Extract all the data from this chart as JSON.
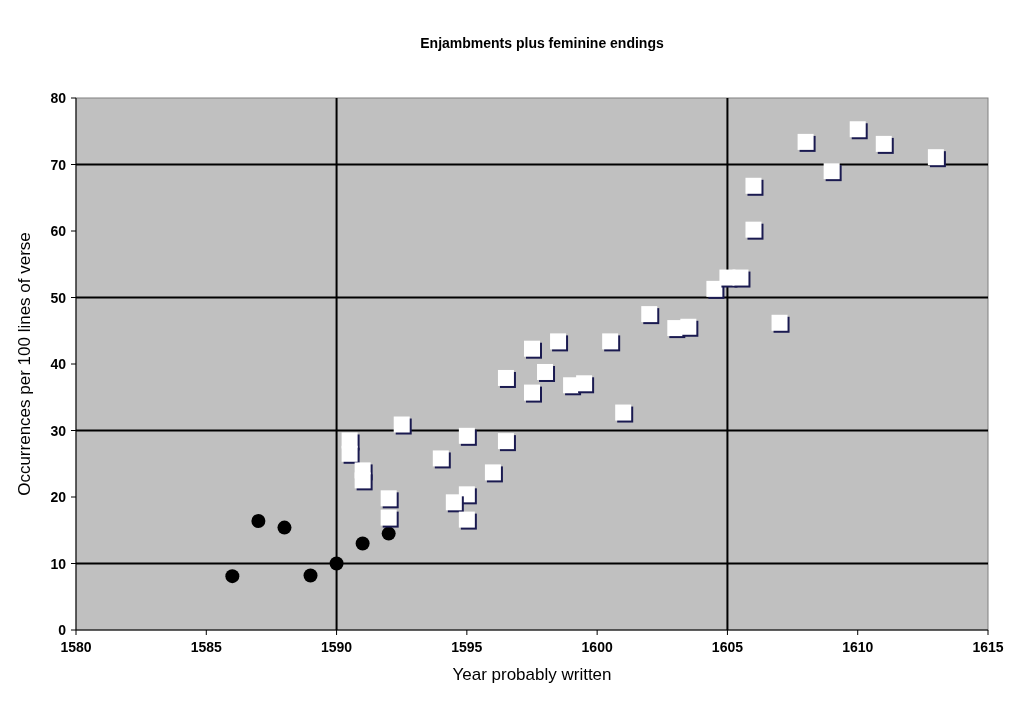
{
  "chart_data": {
    "type": "scatter",
    "title": "Enjambments plus feminine endings",
    "xlabel": "Year probably written",
    "ylabel": "Occurrences per 100 lines of verse",
    "xlim": [
      1580,
      1615
    ],
    "xticks": [
      1580,
      1585,
      1590,
      1595,
      1600,
      1605,
      1610,
      1615
    ],
    "ylim": [
      0,
      80
    ],
    "yticks": [
      0,
      10,
      20,
      30,
      40,
      50,
      60,
      70,
      80
    ],
    "grid": false,
    "ref_lines": [
      {
        "axis": "x",
        "value": 1590,
        "color": "#000000"
      },
      {
        "axis": "x",
        "value": 1605,
        "color": "#000000"
      },
      {
        "axis": "y",
        "value": 10,
        "color": "#000000"
      },
      {
        "axis": "y",
        "value": 30,
        "color": "#000000"
      },
      {
        "axis": "y",
        "value": 50,
        "color": "#000000"
      },
      {
        "axis": "y",
        "value": 70,
        "color": "#000000"
      }
    ],
    "series": [
      {
        "color": "#000000",
        "marker": "circle",
        "x": [
          1586,
          1587,
          1588,
          1589,
          1590,
          1591,
          1592
        ],
        "values": [
          8.1,
          16.4,
          15.4,
          8.2,
          10,
          13,
          14.5
        ]
      },
      {
        "color": "#ffffff",
        "marker": "square",
        "x": [
          1590.5,
          1590.5,
          1591,
          1591,
          1592.5,
          1592,
          1592,
          1594,
          1595,
          1596,
          1595,
          1594.5,
          1595,
          1596.5,
          1597.5,
          1598.5,
          1600.5,
          1596.5,
          1598,
          1597.5,
          1599,
          1599.5,
          1601,
          1602,
          1603,
          1603.5,
          1604.5,
          1605,
          1605.5,
          1607,
          1606,
          1606,
          1608,
          1609,
          1610,
          1611,
          1613
        ],
        "values": [
          28.5,
          26.5,
          24,
          22.5,
          30.9,
          19.8,
          16.9,
          25.8,
          29.2,
          23.7,
          20.4,
          19.2,
          16.6,
          28.4,
          42.3,
          43.4,
          43.4,
          37.9,
          38.8,
          35.7,
          36.8,
          37.1,
          32.7,
          47.5,
          45.4,
          45.6,
          51.3,
          53,
          53,
          46.2,
          60.2,
          66.8,
          73.4,
          69,
          75.3,
          73.1,
          71.1
        ]
      }
    ]
  }
}
